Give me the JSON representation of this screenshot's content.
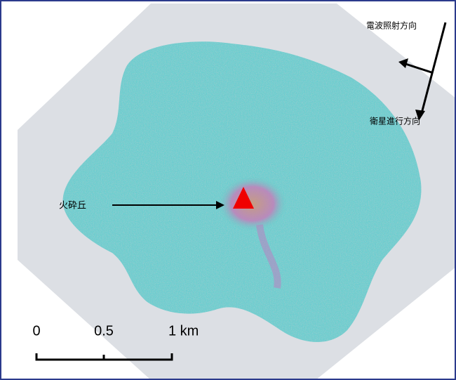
{
  "annotations": {
    "radar_direction": "電波照射方向",
    "satellite_direction": "衛星進行方向",
    "pyroclastic_cone": "火砕丘"
  },
  "scale_bar": {
    "labels": [
      "0",
      "0.5",
      "1 km"
    ]
  }
}
